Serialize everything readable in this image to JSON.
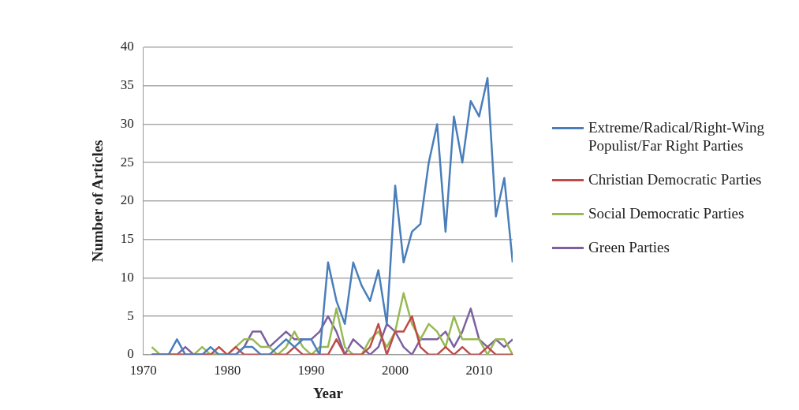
{
  "chart_data": {
    "type": "line",
    "xlabel": "Year",
    "ylabel": "Number of Articles",
    "x": [
      1971,
      1972,
      1973,
      1974,
      1975,
      1976,
      1977,
      1978,
      1979,
      1980,
      1981,
      1982,
      1983,
      1984,
      1985,
      1986,
      1987,
      1988,
      1989,
      1990,
      1991,
      1992,
      1993,
      1994,
      1995,
      1996,
      1997,
      1998,
      1999,
      2000,
      2001,
      2002,
      2003,
      2004,
      2005,
      2006,
      2007,
      2008,
      2009,
      2010,
      2011,
      2012,
      2013,
      2014
    ],
    "series": [
      {
        "name": "Extreme/Radical/Right-Wing Populist/Far Right Parties",
        "color": "#4a7ebb",
        "values": [
          0,
          0,
          0,
          2,
          0,
          0,
          0,
          1,
          0,
          0,
          0,
          1,
          1,
          0,
          0,
          1,
          2,
          1,
          2,
          2,
          0,
          12,
          7,
          4,
          12,
          9,
          7,
          11,
          4,
          22,
          12,
          16,
          17,
          25,
          30,
          16,
          31,
          25,
          33,
          31,
          36,
          18,
          23,
          12
        ]
      },
      {
        "name": "Christian Democratic Parties",
        "color": "#be4b48",
        "values": [
          0,
          0,
          0,
          0,
          0,
          0,
          0,
          0,
          1,
          0,
          1,
          0,
          0,
          0,
          0,
          0,
          0,
          1,
          0,
          0,
          0,
          0,
          2,
          0,
          0,
          0,
          1,
          4,
          0,
          3,
          3,
          5,
          1,
          0,
          0,
          1,
          0,
          1,
          0,
          0,
          1,
          0,
          0,
          0
        ]
      },
      {
        "name": "Social Democratic Parties",
        "color": "#98b954",
        "values": [
          1,
          0,
          0,
          0,
          0,
          0,
          1,
          0,
          0,
          0,
          1,
          2,
          2,
          1,
          1,
          0,
          1,
          3,
          1,
          0,
          1,
          1,
          6,
          1,
          0,
          0,
          2,
          3,
          1,
          3,
          8,
          4,
          2,
          4,
          3,
          1,
          5,
          2,
          2,
          2,
          0,
          2,
          2,
          0
        ]
      },
      {
        "name": "Green Parties",
        "color": "#7d60a0",
        "values": [
          0,
          0,
          0,
          0,
          1,
          0,
          0,
          0,
          0,
          0,
          0,
          1,
          3,
          3,
          1,
          2,
          3,
          2,
          2,
          2,
          3,
          5,
          3,
          0,
          2,
          1,
          0,
          1,
          4,
          3,
          1,
          0,
          2,
          2,
          2,
          3,
          1,
          3,
          6,
          2,
          1,
          2,
          1,
          2
        ]
      }
    ],
    "xlim": [
      1970,
      2014
    ],
    "xticks": [
      1970,
      1980,
      1990,
      2000,
      2010
    ],
    "ylim": [
      0,
      40
    ],
    "yticks": [
      0,
      5,
      10,
      15,
      20,
      25,
      30,
      35,
      40
    ],
    "grid": "y",
    "legend": "right",
    "marker": "none",
    "line_style": "solid"
  }
}
